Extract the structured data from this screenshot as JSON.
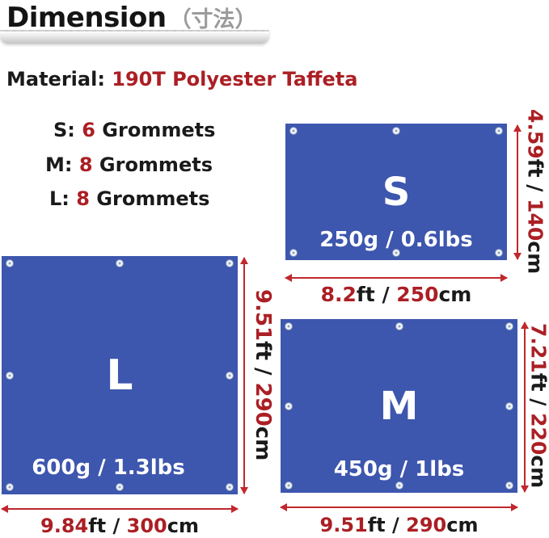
{
  "title": {
    "main": "Dimension",
    "jp": "（寸法）"
  },
  "material": {
    "label": "Material: ",
    "value": "190T Polyester Taffeta"
  },
  "grommet_list": [
    {
      "size": "S: ",
      "count": "6",
      "label": " Grommets"
    },
    {
      "size": "M: ",
      "count": "8",
      "label": " Grommets"
    },
    {
      "size": "L: ",
      "count": "8",
      "label": " Grommets"
    }
  ],
  "tarps": {
    "S": {
      "name": "S",
      "weight": "250g / 0.6lbs",
      "grommet_count": 6,
      "width": {
        "ft": "8.2",
        "ft_unit": "ft / ",
        "cm": "250",
        "cm_unit": "cm"
      },
      "height": {
        "ft": "4.59",
        "ft_unit": "ft / ",
        "cm": "140",
        "cm_unit": "cm"
      }
    },
    "M": {
      "name": "M",
      "weight": "450g / 1lbs",
      "grommet_count": 8,
      "width": {
        "ft": "9.51",
        "ft_unit": "ft / ",
        "cm": "290",
        "cm_unit": "cm"
      },
      "height": {
        "ft": "7.21",
        "ft_unit": "ft / ",
        "cm": "220",
        "cm_unit": "cm"
      }
    },
    "L": {
      "name": "L",
      "weight": "600g / 1.3lbs",
      "grommet_count": 8,
      "width": {
        "ft": "9.84",
        "ft_unit": "ft / ",
        "cm": "300",
        "cm_unit": "cm"
      },
      "height": {
        "ft": "9.51",
        "ft_unit": "ft / ",
        "cm": "290",
        "cm_unit": "cm"
      }
    }
  },
  "colors": {
    "tarp_blue": "#3d56ae",
    "text_red": "#ab1f24",
    "arrow_red": "#c1272d",
    "subtitle_gray": "#9b9b9b",
    "text_black": "#1a1a1a"
  }
}
